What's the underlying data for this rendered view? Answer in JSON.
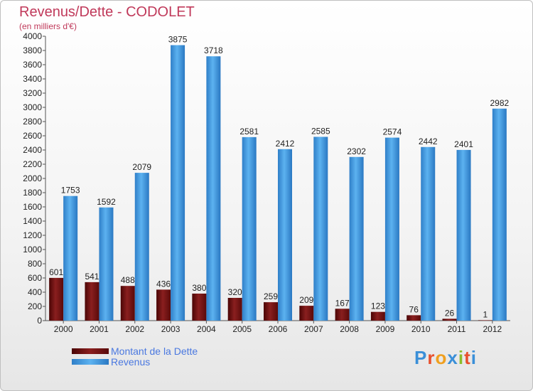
{
  "chart_data": {
    "type": "bar",
    "title": "Revenus/Dette - CODOLET",
    "subtitle": "(en milliers d'€)",
    "categories": [
      "2000",
      "2001",
      "2002",
      "2003",
      "2004",
      "2005",
      "2006",
      "2007",
      "2008",
      "2009",
      "2010",
      "2011",
      "2012"
    ],
    "series": [
      {
        "name": "Montant de la Dette",
        "color": "#6b0f0f",
        "values": [
          601,
          541,
          488,
          436,
          380,
          320,
          259,
          209,
          167,
          123,
          76,
          26,
          1
        ]
      },
      {
        "name": "Revenus",
        "color": "#3f9be6",
        "values": [
          1753,
          1592,
          2079,
          3875,
          3718,
          2581,
          2412,
          2585,
          2302,
          2574,
          2442,
          2401,
          2982
        ]
      }
    ],
    "ylim": [
      0,
      4000
    ],
    "ytick_step": 200,
    "grid": false,
    "legend": "bottom-left"
  },
  "logo": {
    "letters": [
      "P",
      "r",
      "o",
      "x",
      "i",
      "t",
      "i"
    ],
    "colors": [
      "#3a8fd8",
      "#e8502d",
      "#f0a020",
      "#3a8fd8",
      "#8bbd2a",
      "#e8502d",
      "#3a8fd8"
    ]
  }
}
